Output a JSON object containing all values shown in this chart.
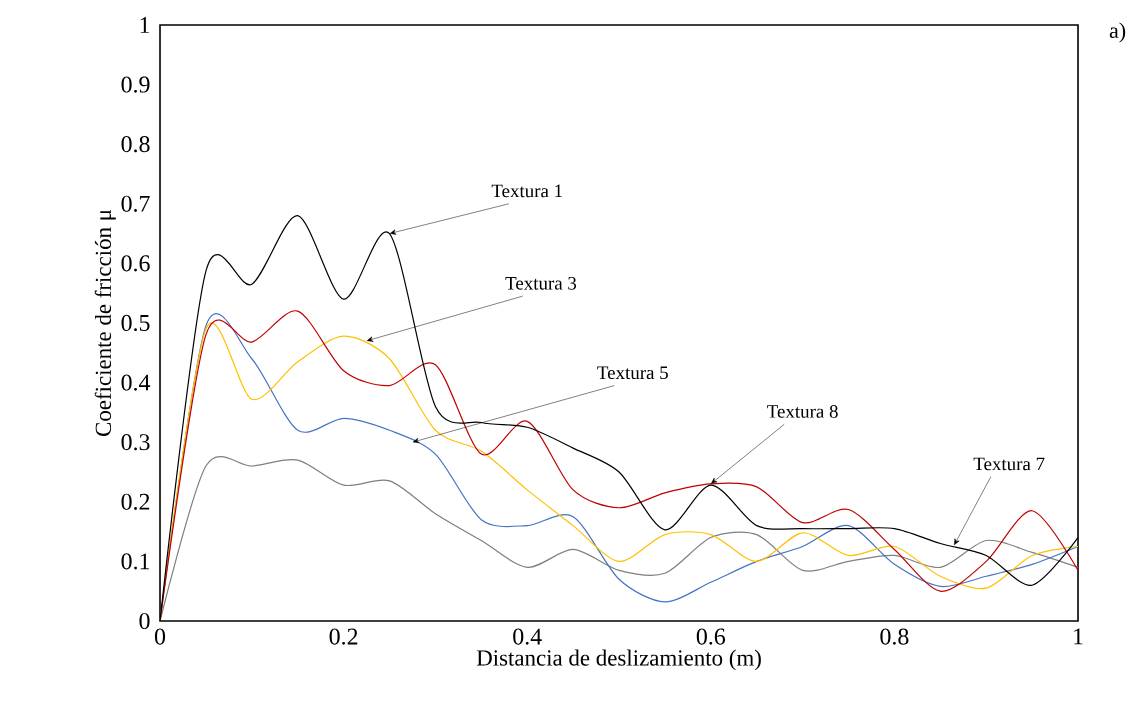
{
  "chart_data": {
    "type": "line",
    "xlabel": "Distancia de deslizamiento (m)",
    "ylabel": "Coeficiente de fricción μ",
    "xlim": [
      0,
      1
    ],
    "ylim": [
      0,
      1
    ],
    "xticks": [
      0,
      {
        "value": 0.2,
        "label": "0.2"
      },
      {
        "value": 0.4,
        "label": "0.4"
      },
      {
        "value": 0.6,
        "label": "0.6"
      },
      {
        "value": 0.8,
        "label": "0.8"
      },
      1
    ],
    "yticks": [
      0,
      {
        "value": 0.1,
        "label": "0.1"
      },
      {
        "value": 0.2,
        "label": "0.2"
      },
      {
        "value": 0.3,
        "label": "0.3"
      },
      {
        "value": 0.4,
        "label": "0.4"
      },
      {
        "value": 0.5,
        "label": "0.5"
      },
      {
        "value": 0.6,
        "label": "0.6"
      },
      {
        "value": 0.7,
        "label": "0.7"
      },
      {
        "value": 0.8,
        "label": "0.8"
      },
      {
        "value": 0.9,
        "label": "0.9"
      },
      1
    ],
    "grid": false,
    "legend": false,
    "marker": "none",
    "line_style": "solid",
    "x": [
      0,
      0.05,
      0.1,
      0.15,
      0.2,
      0.25,
      0.3,
      0.35,
      0.4,
      0.45,
      0.5,
      0.55,
      0.6,
      0.65,
      0.7,
      0.75,
      0.8,
      0.85,
      0.9,
      0.95,
      1
    ],
    "series": [
      {
        "color": "#7f7f7f",
        "values": [
          0,
          0.26,
          0.26,
          0.27,
          0.228,
          0.235,
          0.18,
          0.135,
          0.09,
          0.12,
          0.085,
          0.08,
          0.14,
          0.145,
          0.085,
          0.1,
          0.11,
          0.09,
          0.135,
          0.115,
          0.09
        ]
      },
      {
        "color": "#4472c4",
        "values": [
          0,
          0.495,
          0.44,
          0.32,
          0.34,
          0.32,
          0.28,
          0.17,
          0.16,
          0.175,
          0.07,
          0.032,
          0.065,
          0.1,
          0.125,
          0.16,
          0.095,
          0.058,
          0.075,
          0.095,
          0.125
        ]
      },
      {
        "color": "#ffc000",
        "values": [
          0,
          0.49,
          0.372,
          0.435,
          0.478,
          0.44,
          0.32,
          0.285,
          0.22,
          0.16,
          0.1,
          0.145,
          0.145,
          0.1,
          0.148,
          0.11,
          0.125,
          0.075,
          0.055,
          0.11,
          0.125
        ]
      },
      {
        "color": "#c00000",
        "values": [
          0,
          0.48,
          0.468,
          0.52,
          0.42,
          0.395,
          0.43,
          0.28,
          0.335,
          0.22,
          0.19,
          0.215,
          0.23,
          0.225,
          0.165,
          0.187,
          0.12,
          0.05,
          0.1,
          0.185,
          0.085
        ]
      },
      {
        "color": "#000000",
        "values": [
          0,
          0.587,
          0.565,
          0.68,
          0.54,
          0.65,
          0.36,
          0.333,
          0.325,
          0.29,
          0.25,
          0.153,
          0.228,
          0.16,
          0.155,
          0.155,
          0.155,
          0.13,
          0.11,
          0.06,
          0.14
        ]
      }
    ],
    "annotations": [
      {
        "text": "Textura 1",
        "x": 0.25,
        "y": 0.65
      },
      {
        "text": "Textura 3",
        "x": 0.225,
        "y": 0.47
      },
      {
        "text": "Textura 5",
        "x": 0.275,
        "y": 0.3
      },
      {
        "text": "Textura 8",
        "x": 0.6,
        "y": 0.23
      },
      {
        "text": "Textura 7",
        "x": 0.865,
        "y": 0.127
      },
      "a)"
    ]
  }
}
